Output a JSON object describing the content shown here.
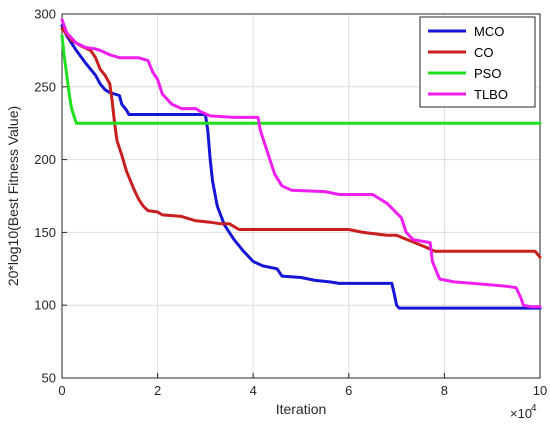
{
  "chart_data": {
    "type": "line",
    "xlabel": "Iteration",
    "ylabel": "20*log10(Best Fitness Value)",
    "x_multiplier_label": "×10",
    "x_multiplier_exponent": "4",
    "xlim": [
      0,
      10
    ],
    "ylim": [
      50,
      300
    ],
    "xticks": [
      0,
      2,
      4,
      6,
      8,
      10
    ],
    "yticks": [
      50,
      100,
      150,
      200,
      250,
      300
    ],
    "grid": true,
    "legend_position": "top-right",
    "series": [
      {
        "name": "MCO",
        "color": "#1515d6",
        "points": [
          [
            0,
            292
          ],
          [
            0.1,
            285
          ],
          [
            0.3,
            275
          ],
          [
            0.5,
            266
          ],
          [
            0.7,
            258
          ],
          [
            0.8,
            252
          ],
          [
            0.9,
            248
          ],
          [
            1.0,
            246
          ],
          [
            1.2,
            244
          ],
          [
            1.25,
            238
          ],
          [
            1.35,
            234
          ],
          [
            1.4,
            231
          ],
          [
            1.8,
            231
          ],
          [
            2.4,
            231
          ],
          [
            3.0,
            231
          ],
          [
            3.05,
            220
          ],
          [
            3.1,
            200
          ],
          [
            3.15,
            185
          ],
          [
            3.25,
            168
          ],
          [
            3.4,
            155
          ],
          [
            3.6,
            145
          ],
          [
            3.8,
            137
          ],
          [
            4.0,
            130
          ],
          [
            4.2,
            127
          ],
          [
            4.5,
            125
          ],
          [
            4.6,
            120
          ],
          [
            5.0,
            119
          ],
          [
            5.3,
            117
          ],
          [
            5.6,
            116
          ],
          [
            5.8,
            115
          ],
          [
            6.5,
            115
          ],
          [
            6.9,
            115
          ],
          [
            6.95,
            108
          ],
          [
            7.0,
            100
          ],
          [
            7.05,
            98
          ],
          [
            8.0,
            98
          ],
          [
            9.0,
            98
          ],
          [
            10.0,
            98
          ]
        ]
      },
      {
        "name": "CO",
        "color": "#c81e1e",
        "points": [
          [
            0,
            290
          ],
          [
            0.2,
            282
          ],
          [
            0.4,
            278
          ],
          [
            0.6,
            275
          ],
          [
            0.7,
            270
          ],
          [
            0.8,
            262
          ],
          [
            0.9,
            258
          ],
          [
            1.0,
            252
          ],
          [
            1.05,
            240
          ],
          [
            1.1,
            225
          ],
          [
            1.15,
            213
          ],
          [
            1.25,
            203
          ],
          [
            1.35,
            192
          ],
          [
            1.5,
            180
          ],
          [
            1.6,
            173
          ],
          [
            1.7,
            168
          ],
          [
            1.8,
            165
          ],
          [
            2.0,
            164
          ],
          [
            2.1,
            162
          ],
          [
            2.5,
            161
          ],
          [
            2.8,
            158
          ],
          [
            3.1,
            157
          ],
          [
            3.3,
            156
          ],
          [
            3.5,
            156
          ],
          [
            3.7,
            152
          ],
          [
            4.0,
            152
          ],
          [
            5.0,
            152
          ],
          [
            6.0,
            152
          ],
          [
            6.3,
            150
          ],
          [
            6.8,
            148
          ],
          [
            7.0,
            148
          ],
          [
            7.3,
            144
          ],
          [
            7.6,
            140
          ],
          [
            7.8,
            137
          ],
          [
            8.5,
            137
          ],
          [
            9.3,
            137
          ],
          [
            9.9,
            137
          ],
          [
            10.0,
            133
          ]
        ]
      },
      {
        "name": "PSO",
        "color": "#1ee01e",
        "points": [
          [
            0,
            285
          ],
          [
            0.05,
            270
          ],
          [
            0.1,
            258
          ],
          [
            0.15,
            245
          ],
          [
            0.2,
            235
          ],
          [
            0.3,
            225
          ],
          [
            1.0,
            225
          ],
          [
            5.0,
            225
          ],
          [
            10.0,
            225
          ]
        ]
      },
      {
        "name": "TLBO",
        "color": "#f01ef0",
        "points": [
          [
            0,
            296
          ],
          [
            0.1,
            287
          ],
          [
            0.3,
            280
          ],
          [
            0.5,
            277
          ],
          [
            0.7,
            276
          ],
          [
            0.8,
            275
          ],
          [
            1.0,
            272
          ],
          [
            1.2,
            270
          ],
          [
            1.6,
            270
          ],
          [
            1.8,
            268
          ],
          [
            1.9,
            260
          ],
          [
            2.0,
            255
          ],
          [
            2.1,
            245
          ],
          [
            2.3,
            238
          ],
          [
            2.5,
            235
          ],
          [
            2.8,
            235
          ],
          [
            2.9,
            233
          ],
          [
            3.1,
            230
          ],
          [
            3.6,
            229
          ],
          [
            4.1,
            229
          ],
          [
            4.15,
            220
          ],
          [
            4.3,
            205
          ],
          [
            4.45,
            190
          ],
          [
            4.6,
            182
          ],
          [
            4.8,
            179
          ],
          [
            5.5,
            178
          ],
          [
            5.8,
            176
          ],
          [
            6.5,
            176
          ],
          [
            6.6,
            174
          ],
          [
            6.8,
            170
          ],
          [
            7.1,
            160
          ],
          [
            7.2,
            150
          ],
          [
            7.35,
            145
          ],
          [
            7.7,
            143
          ],
          [
            7.75,
            130
          ],
          [
            7.9,
            118
          ],
          [
            8.2,
            116
          ],
          [
            8.6,
            115
          ],
          [
            9.3,
            113
          ],
          [
            9.5,
            112
          ],
          [
            9.6,
            105
          ],
          [
            9.65,
            100
          ],
          [
            9.8,
            99
          ],
          [
            10.0,
            99
          ]
        ]
      }
    ]
  }
}
